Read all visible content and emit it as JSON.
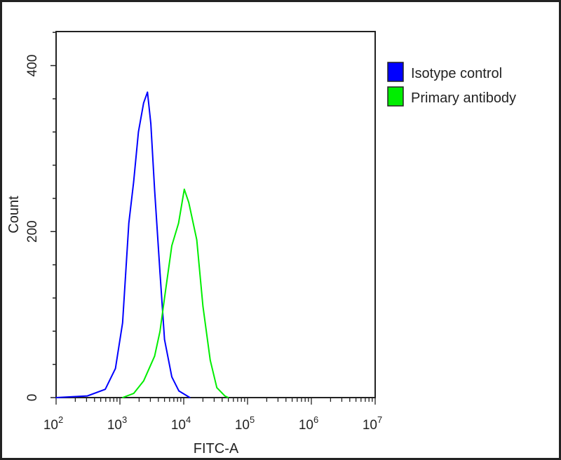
{
  "chart_data": {
    "type": "line",
    "title": "",
    "xlabel": "FITC-A",
    "ylabel": "Count",
    "x_scale": "log",
    "xlim": [
      100,
      10000000
    ],
    "ylim": [
      0,
      441
    ],
    "x_tick_labels": [
      {
        "value": 100,
        "base": "10",
        "exp": "2"
      },
      {
        "value": 1000,
        "base": "10",
        "exp": "3"
      },
      {
        "value": 10000,
        "base": "10",
        "exp": "4"
      },
      {
        "value": 100000,
        "base": "10",
        "exp": "5"
      },
      {
        "value": 1000000,
        "base": "10",
        "exp": "6"
      },
      {
        "value": 10000000,
        "base": "10",
        "exp": "7"
      }
    ],
    "y_ticks": [
      0,
      200,
      400
    ],
    "y_tick_labels": [
      "0",
      "200",
      "400"
    ],
    "grid": false,
    "legend_position": "right",
    "series": [
      {
        "name": "Isotype control",
        "color": "#0000ff",
        "x": [
          100,
          310,
          590,
          850,
          1100,
          1380,
          1640,
          1950,
          2350,
          2700,
          3050,
          3500,
          4250,
          5000,
          6500,
          8400,
          12500
        ],
        "y": [
          0,
          2,
          10,
          35,
          90,
          210,
          260,
          320,
          355,
          368,
          330,
          250,
          150,
          70,
          25,
          8,
          0
        ]
      },
      {
        "name": "Primary antibody",
        "color": "#00ee00",
        "x": [
          1100,
          1640,
          2350,
          3500,
          4250,
          5000,
          6500,
          8300,
          10200,
          12000,
          16000,
          20000,
          26000,
          33000,
          44000,
          50000
        ],
        "y": [
          0,
          5,
          20,
          50,
          80,
          120,
          183,
          210,
          251,
          235,
          190,
          110,
          45,
          12,
          2,
          0
        ]
      }
    ]
  }
}
